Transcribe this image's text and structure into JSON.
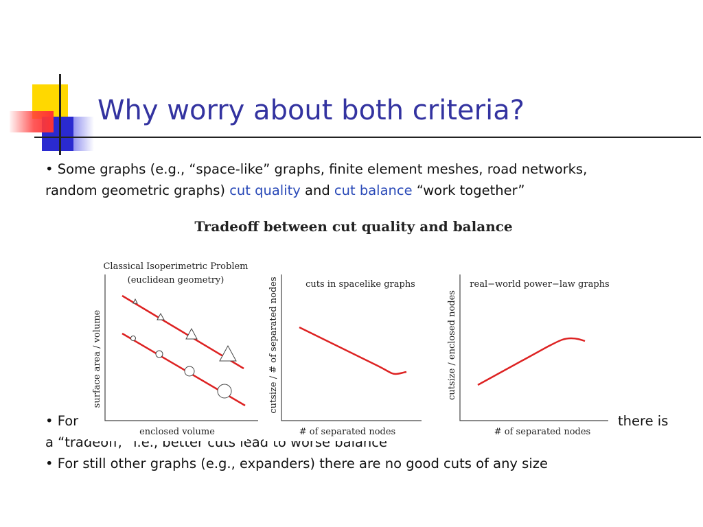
{
  "title": "Why worry about both criteria?",
  "bullet1": {
    "line1": "• Some graphs (e.g., “space-like” graphs, finite element meshes, road networks,",
    "line2_pre": "random geometric graphs) ",
    "line2_hl1": "cut quality",
    "line2_mid": " and ",
    "line2_hl2": "cut balance",
    "line2_post": " “work together”"
  },
  "bullet2": {
    "line1_start": "• For ",
    "line1_end": "there is",
    "line2": "a “tradeoff,” i.e., better cuts lead to worse balance"
  },
  "bullet3": "• For still other graphs (e.g., expanders) there are no good cuts of any size",
  "figure": {
    "title": "Tradeoff between cut quality and balance",
    "panel1": {
      "title_line1": "Classical Isoperimetric Problem",
      "title_line2": "(euclidean geometry)",
      "xlabel": "enclosed volume",
      "ylabel": "surface area / volume"
    },
    "panel2": {
      "title": "cuts in spacelike graphs",
      "xlabel": "# of separated nodes",
      "ylabel": "cutsize / # of separated nodes"
    },
    "panel3": {
      "title": "real−world power−law graphs",
      "xlabel": "# of separated nodes",
      "ylabel": "cutsize / enclosed nodes"
    }
  },
  "colors": {
    "title": "#3333a0",
    "highlight": "#2a4ab8",
    "curve": "#dd2222"
  }
}
